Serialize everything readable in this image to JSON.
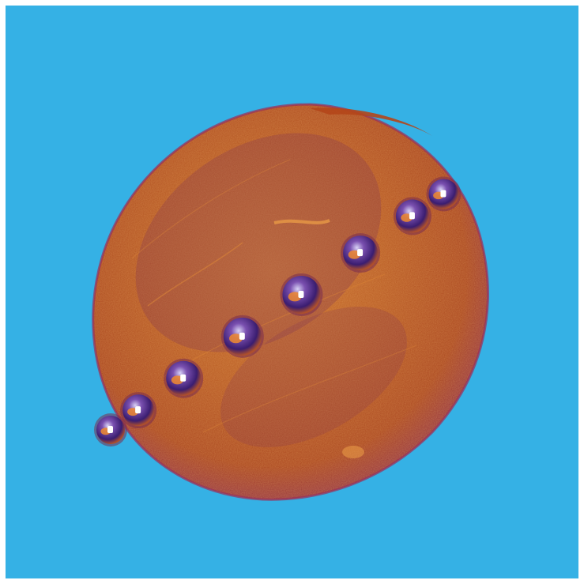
{
  "image": {
    "background_color": "#35B1E5",
    "frame_color": "#FFFFFF",
    "subject": {
      "palette": {
        "outer": "#B4461A",
        "mid": "#C86A28",
        "highlight": "#E59A3A",
        "rim": "#9A2F5A",
        "sphere_dark": "#3A1D70",
        "sphere_mid": "#6A3C9A",
        "sphere_light": "#C8C4F0",
        "glint": "#FFFFFF",
        "debris": "#F08A2E"
      },
      "spheres": [
        {
          "name": "sphere-1",
          "fraction_along_line": 0.0
        },
        {
          "name": "sphere-2",
          "fraction_along_line": 0.08
        },
        {
          "name": "sphere-3",
          "fraction_along_line": 0.21
        },
        {
          "name": "sphere-4",
          "fraction_along_line": 0.38
        },
        {
          "name": "sphere-5",
          "fraction_along_line": 0.55
        },
        {
          "name": "sphere-6",
          "fraction_along_line": 0.72
        },
        {
          "name": "sphere-7",
          "fraction_along_line": 0.87
        },
        {
          "name": "sphere-8",
          "fraction_along_line": 0.96
        }
      ]
    }
  }
}
